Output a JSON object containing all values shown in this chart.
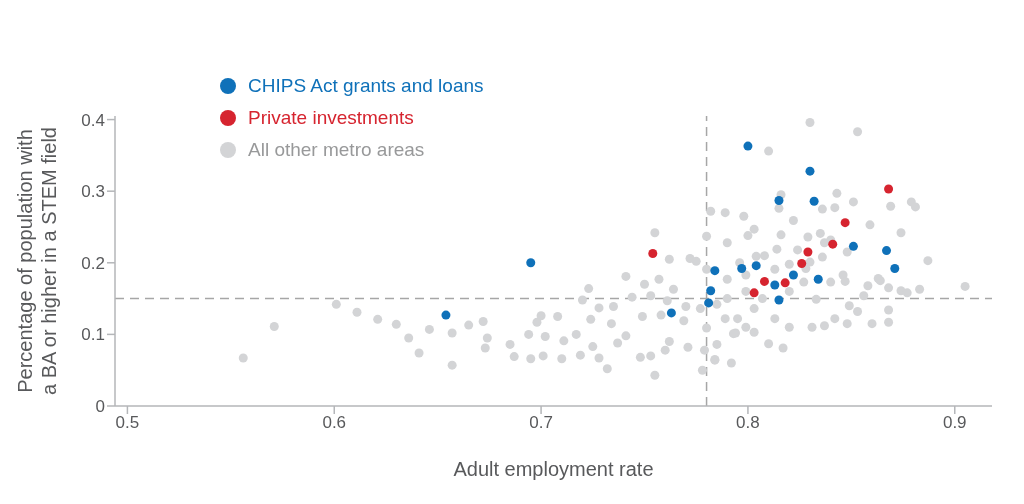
{
  "chart_data": {
    "type": "scatter",
    "xlabel": "Adult employment rate",
    "ylabel": "Percentage of population with a BA or higher in a STEM field",
    "xlim": [
      0.494,
      0.918
    ],
    "ylim": [
      0,
      0.405
    ],
    "xticks": [
      0.5,
      0.6,
      0.7,
      0.8,
      0.9
    ],
    "yticks": [
      0,
      0.1,
      0.2,
      0.3,
      0.4
    ],
    "grid": false,
    "legend": "top left",
    "marker": "circle",
    "ref_lines": [
      {
        "axis": "x",
        "value": 0.78,
        "color": "#a6a6a6",
        "line_style": "dashed"
      },
      {
        "axis": "y",
        "value": 0.15,
        "color": "#a6a6a6",
        "line_style": "dashed"
      }
    ],
    "series": [
      {
        "name": "CHIPS Act grants and loans",
        "color": "#0f71b9",
        "x": [
          0.654,
          0.695,
          0.763,
          0.784,
          0.782,
          0.781,
          0.8,
          0.83,
          0.815,
          0.832,
          0.851,
          0.867,
          0.871,
          0.804,
          0.797,
          0.822,
          0.834,
          0.813,
          0.815
        ],
        "values": [
          0.127,
          0.2,
          0.13,
          0.189,
          0.161,
          0.144,
          0.363,
          0.328,
          0.287,
          0.286,
          0.223,
          0.217,
          0.192,
          0.196,
          0.192,
          0.183,
          0.177,
          0.169,
          0.148
        ]
      },
      {
        "name": "Private investments",
        "color": "#d6242f",
        "x": [
          0.754,
          0.868,
          0.847,
          0.841,
          0.829,
          0.826,
          0.808,
          0.818,
          0.803
        ],
        "values": [
          0.213,
          0.303,
          0.256,
          0.226,
          0.215,
          0.199,
          0.174,
          0.172,
          0.158
        ]
      },
      {
        "name": "All other metro areas",
        "color": "#d3d4d6",
        "x": [
          0.556,
          0.571,
          0.601,
          0.611,
          0.621,
          0.63,
          0.636,
          0.641,
          0.646,
          0.657,
          0.657,
          0.665,
          0.672,
          0.674,
          0.673,
          0.685,
          0.687,
          0.695,
          0.694,
          0.698,
          0.7,
          0.708,
          0.701,
          0.71,
          0.702,
          0.711,
          0.717,
          0.719,
          0.723,
          0.72,
          0.724,
          0.725,
          0.728,
          0.728,
          0.732,
          0.734,
          0.735,
          0.737,
          0.741,
          0.741,
          0.744,
          0.748,
          0.75,
          0.749,
          0.753,
          0.755,
          0.755,
          0.753,
          0.757,
          0.758,
          0.76,
          0.762,
          0.764,
          0.761,
          0.762,
          0.769,
          0.77,
          0.771,
          0.772,
          0.775,
          0.778,
          0.779,
          0.78,
          0.782,
          0.78,
          0.78,
          0.784,
          0.79,
          0.789,
          0.794,
          0.83,
          0.853,
          0.81,
          0.816,
          0.815,
          0.798,
          0.843,
          0.851,
          0.836,
          0.842,
          0.879,
          0.881,
          0.869,
          0.822,
          0.803,
          0.8,
          0.816,
          0.829,
          0.835,
          0.859,
          0.874,
          0.837,
          0.84,
          0.814,
          0.824,
          0.848,
          0.836,
          0.887,
          0.804,
          0.808,
          0.796,
          0.82,
          0.83,
          0.813,
          0.828,
          0.846,
          0.84,
          0.847,
          0.863,
          0.864,
          0.858,
          0.868,
          0.883,
          0.874,
          0.877,
          0.856,
          0.905,
          0.833,
          0.849,
          0.853,
          0.868,
          0.868,
          0.86,
          0.848,
          0.842,
          0.837,
          0.831,
          0.82,
          0.817,
          0.81,
          0.803,
          0.799,
          0.793,
          0.792,
          0.784,
          0.785,
          0.789,
          0.795,
          0.803,
          0.813,
          0.807,
          0.799,
          0.79,
          0.785,
          0.777,
          0.82,
          0.827,
          0.79,
          0.799
        ],
        "values": [
          0.067,
          0.111,
          0.142,
          0.131,
          0.121,
          0.114,
          0.095,
          0.074,
          0.107,
          0.102,
          0.057,
          0.113,
          0.118,
          0.095,
          0.081,
          0.086,
          0.069,
          0.066,
          0.1,
          0.117,
          0.126,
          0.125,
          0.07,
          0.066,
          0.097,
          0.091,
          0.1,
          0.071,
          0.164,
          0.148,
          0.121,
          0.083,
          0.137,
          0.067,
          0.052,
          0.115,
          0.139,
          0.088,
          0.181,
          0.098,
          0.152,
          0.068,
          0.17,
          0.125,
          0.07,
          0.242,
          0.043,
          0.154,
          0.177,
          0.127,
          0.078,
          0.205,
          0.163,
          0.147,
          0.09,
          0.119,
          0.139,
          0.082,
          0.206,
          0.202,
          0.05,
          0.078,
          0.237,
          0.272,
          0.191,
          0.109,
          0.064,
          0.228,
          0.27,
          0.102,
          0.396,
          0.383,
          0.356,
          0.295,
          0.276,
          0.265,
          0.297,
          0.285,
          0.275,
          0.277,
          0.285,
          0.278,
          0.279,
          0.259,
          0.247,
          0.238,
          0.239,
          0.236,
          0.241,
          0.253,
          0.242,
          0.228,
          0.232,
          0.219,
          0.218,
          0.215,
          0.208,
          0.203,
          0.209,
          0.21,
          0.2,
          0.198,
          0.201,
          0.191,
          0.192,
          0.183,
          0.173,
          0.174,
          0.178,
          0.175,
          0.168,
          0.165,
          0.163,
          0.161,
          0.158,
          0.154,
          0.167,
          0.149,
          0.14,
          0.132,
          0.134,
          0.117,
          0.115,
          0.115,
          0.122,
          0.112,
          0.11,
          0.11,
          0.081,
          0.087,
          0.103,
          0.11,
          0.101,
          0.06,
          0.065,
          0.086,
          0.122,
          0.122,
          0.136,
          0.122,
          0.15,
          0.16,
          0.15,
          0.142,
          0.136,
          0.16,
          0.173,
          0.177,
          0.183
        ]
      }
    ]
  }
}
